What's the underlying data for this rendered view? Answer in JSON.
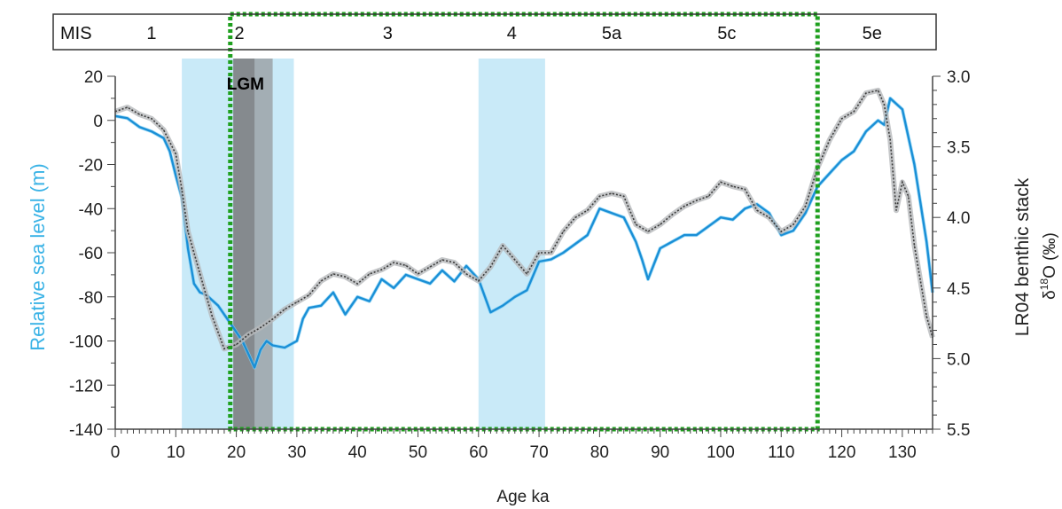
{
  "chart_data": {
    "type": "line",
    "xlabel": "Age ka",
    "ylabel_left": "Relative sea level (m)",
    "ylabel_right_line1": "LR04 benthic stack",
    "ylabel_right_delta": "δ",
    "ylabel_right_sup": "18",
    "ylabel_right_rest": "O (‰)",
    "xlim": [
      0,
      135
    ],
    "ylim_left": [
      -140,
      20
    ],
    "ylim_right": [
      3.0,
      5.5
    ],
    "right_axis_inverted": true,
    "x_ticks": [
      0,
      10,
      20,
      30,
      40,
      50,
      60,
      70,
      80,
      90,
      100,
      110,
      120,
      130
    ],
    "y_left_ticks": [
      20,
      0,
      -20,
      -40,
      -60,
      -80,
      -100,
      -120,
      -140
    ],
    "y_right_ticks": [
      "3.0",
      "3.5",
      "4.0",
      "4.5",
      "5.0",
      "5.5"
    ],
    "mis_label": "MIS",
    "mis_stages": [
      {
        "label": "1",
        "x": 6
      },
      {
        "label": "2",
        "x": 20.5
      },
      {
        "label": "3",
        "x": 45
      },
      {
        "label": "4",
        "x": 65.5
      },
      {
        "label": "5a",
        "x": 82
      },
      {
        "label": "5c",
        "x": 101
      },
      {
        "label": "5e",
        "x": 125
      }
    ],
    "shaded_regions": [
      {
        "from": 11,
        "to": 29.5,
        "color": "#bfe6f7"
      },
      {
        "from": 60,
        "to": 71,
        "color": "#bfe6f7"
      },
      {
        "from": 19.5,
        "to": 26,
        "color": "#9a9fa3"
      },
      {
        "from": 19.5,
        "to": 23,
        "color": "#7d8184"
      }
    ],
    "annotation": {
      "text": "LGM",
      "x": 21.5,
      "y": 14
    },
    "highlight_box": {
      "from": 19,
      "to": 116,
      "color": "#1fa01f"
    },
    "series": [
      {
        "name": "",
        "axis": "left",
        "color": "#1a8fd6",
        "x": [
          0,
          2,
          4,
          6,
          8,
          9,
          10,
          11,
          12,
          13,
          14,
          15,
          17,
          19,
          21,
          22,
          23,
          24,
          25,
          26,
          28,
          30,
          31,
          32,
          34,
          36,
          38,
          40,
          42,
          44,
          46,
          48,
          50,
          52,
          54,
          56,
          58,
          60,
          62,
          64,
          66,
          68,
          70,
          72,
          74,
          76,
          78,
          80,
          82,
          84,
          86,
          87,
          88,
          90,
          92,
          94,
          96,
          98,
          100,
          102,
          104,
          106,
          108,
          110,
          112,
          114,
          116,
          118,
          120,
          122,
          124,
          126,
          127,
          128,
          130,
          132,
          134,
          135
        ],
        "y": [
          2,
          1,
          -3,
          -5,
          -8,
          -14,
          -25,
          -35,
          -58,
          -74,
          -78,
          -79,
          -84,
          -92,
          -100,
          -106,
          -112,
          -104,
          -100,
          -102,
          -103,
          -100,
          -90,
          -85,
          -84,
          -78,
          -88,
          -80,
          -82,
          -72,
          -76,
          -70,
          -72,
          -74,
          -68,
          -73,
          -66,
          -72,
          -87,
          -84,
          -80,
          -77,
          -64,
          -63,
          -60,
          -56,
          -52,
          -40,
          -42,
          -44,
          -55,
          -63,
          -72,
          -58,
          -55,
          -52,
          -52,
          -48,
          -44,
          -45,
          -40,
          -38,
          -42,
          -52,
          -50,
          -42,
          -30,
          -24,
          -18,
          -14,
          -5,
          0,
          -2,
          10,
          5,
          -20,
          -55,
          -78
        ]
      },
      {
        "name": "",
        "axis": "right",
        "color": "#3a3a3a",
        "x": [
          0,
          2,
          4,
          6,
          8,
          10,
          11,
          12,
          14,
          16,
          18,
          20,
          22,
          24,
          26,
          28,
          30,
          32,
          34,
          36,
          38,
          40,
          42,
          44,
          46,
          48,
          50,
          52,
          54,
          56,
          58,
          60,
          62,
          64,
          66,
          68,
          70,
          72,
          74,
          76,
          78,
          80,
          82,
          84,
          86,
          88,
          90,
          92,
          94,
          96,
          98,
          100,
          102,
          104,
          106,
          108,
          110,
          112,
          114,
          116,
          118,
          120,
          122,
          124,
          126,
          127,
          128,
          129,
          130,
          131,
          132,
          134,
          135
        ],
        "y": [
          3.25,
          3.22,
          3.27,
          3.3,
          3.38,
          3.55,
          3.8,
          4.1,
          4.4,
          4.7,
          4.93,
          4.9,
          4.83,
          4.78,
          4.72,
          4.65,
          4.6,
          4.55,
          4.45,
          4.4,
          4.42,
          4.47,
          4.4,
          4.37,
          4.32,
          4.34,
          4.4,
          4.35,
          4.3,
          4.32,
          4.4,
          4.45,
          4.35,
          4.2,
          4.3,
          4.4,
          4.25,
          4.25,
          4.1,
          4.0,
          3.95,
          3.85,
          3.83,
          3.85,
          4.05,
          4.1,
          4.05,
          3.98,
          3.92,
          3.88,
          3.85,
          3.75,
          3.78,
          3.8,
          3.95,
          4.0,
          4.1,
          4.05,
          3.92,
          3.65,
          3.45,
          3.3,
          3.25,
          3.12,
          3.1,
          3.2,
          3.45,
          3.95,
          3.75,
          3.85,
          4.2,
          4.7,
          4.85
        ]
      }
    ]
  }
}
